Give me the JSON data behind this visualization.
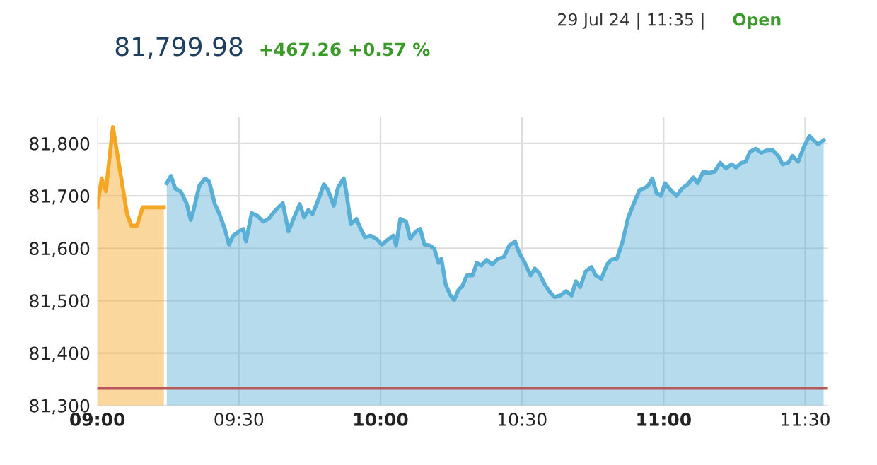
{
  "chart_data": {
    "type": "area",
    "annotations": [
      "81,799.98",
      "+467.26 +0.57 %",
      "29 Jul 24 | 11:35 |",
      "Open"
    ],
    "xlim": [
      9.0,
      11.58
    ],
    "ylim": [
      81300,
      81850
    ],
    "xticks": [
      {
        "value": 9.0,
        "label": "09:00"
      },
      {
        "value": 9.5,
        "label": "09:30"
      },
      {
        "value": 10.0,
        "label": "10:00"
      },
      {
        "value": 10.5,
        "label": "10:30"
      },
      {
        "value": 11.0,
        "label": "11:00"
      },
      {
        "value": 11.5,
        "label": "11:30"
      }
    ],
    "yticks": [
      {
        "value": 81300,
        "label": "81,300"
      },
      {
        "value": 81400,
        "label": "81,400"
      },
      {
        "value": 81500,
        "label": "81,500"
      },
      {
        "value": 81600,
        "label": "81,600"
      },
      {
        "value": 81700,
        "label": "81,700"
      },
      {
        "value": 81800,
        "label": "81,800"
      }
    ],
    "grid": true,
    "legend": false,
    "ref_lines": [
      {
        "axis": "y",
        "value": 81333,
        "color": "#b5595a"
      }
    ],
    "series": [
      {
        "color": "#f5a623",
        "x": [
          9.0,
          9.015,
          9.03,
          9.055,
          9.105,
          9.12,
          9.14,
          9.16,
          9.235
        ],
        "values": [
          81678,
          81733,
          81709,
          81831,
          81665,
          81643,
          81643,
          81678,
          81678
        ]
      },
      {
        "color": "#5aafd6",
        "x": [
          9.245,
          9.26,
          9.275,
          9.295,
          9.315,
          9.33,
          9.34,
          9.36,
          9.38,
          9.395,
          9.415,
          9.43,
          9.45,
          9.465,
          9.48,
          9.5,
          9.515,
          9.525,
          9.545,
          9.565,
          9.585,
          9.605,
          9.625,
          9.645,
          9.655,
          9.675,
          9.695,
          9.715,
          9.73,
          9.745,
          9.76,
          9.78,
          9.8,
          9.815,
          9.835,
          9.85,
          9.87,
          9.88,
          9.895,
          9.915,
          9.93,
          9.945,
          9.965,
          9.985,
          10.005,
          10.025,
          10.045,
          10.055,
          10.07,
          10.09,
          10.105,
          10.125,
          10.14,
          10.155,
          10.175,
          10.19,
          10.205,
          10.215,
          10.23,
          10.245,
          10.26,
          10.275,
          10.29,
          10.305,
          10.325,
          10.34,
          10.355,
          10.375,
          10.395,
          10.415,
          10.435,
          10.455,
          10.475,
          10.49,
          10.51,
          10.53,
          10.545,
          10.56,
          10.58,
          10.6,
          10.615,
          10.635,
          10.655,
          10.675,
          10.69,
          10.705,
          10.725,
          10.745,
          10.76,
          10.78,
          10.8,
          10.815,
          10.835,
          10.855,
          10.875,
          10.895,
          10.915,
          10.93,
          10.945,
          10.96,
          10.975,
          10.99,
          11.005,
          11.025,
          11.045,
          11.065,
          11.085,
          11.105,
          11.12,
          11.14,
          11.16,
          11.18,
          11.2,
          11.22,
          11.24,
          11.255,
          11.275,
          11.29,
          11.305,
          11.325,
          11.345,
          11.365,
          11.385,
          11.405,
          11.42,
          11.44,
          11.455,
          11.475,
          11.495,
          11.515,
          11.53,
          11.545,
          11.565
        ],
        "values": [
          81724,
          81738,
          81714,
          81708,
          81686,
          81654,
          81673,
          81719,
          81733,
          81727,
          81684,
          81667,
          81637,
          81607,
          81624,
          81632,
          81637,
          81613,
          81667,
          81662,
          81651,
          81656,
          81670,
          81681,
          81686,
          81632,
          81659,
          81684,
          81659,
          81673,
          81665,
          81692,
          81722,
          81711,
          81681,
          81716,
          81733,
          81705,
          81646,
          81656,
          81637,
          81621,
          81624,
          81618,
          81607,
          81616,
          81624,
          81605,
          81656,
          81651,
          81618,
          81632,
          81637,
          81607,
          81605,
          81599,
          81572,
          81580,
          81531,
          81512,
          81501,
          81520,
          81529,
          81548,
          81548,
          81572,
          81567,
          81578,
          81569,
          81580,
          81583,
          81605,
          81613,
          81591,
          81572,
          81548,
          81561,
          81553,
          81531,
          81515,
          81507,
          81510,
          81518,
          81510,
          81537,
          81526,
          81556,
          81564,
          81548,
          81542,
          81569,
          81578,
          81580,
          81613,
          81659,
          81686,
          81711,
          81714,
          81719,
          81733,
          81705,
          81700,
          81724,
          81711,
          81700,
          81714,
          81722,
          81735,
          81724,
          81746,
          81744,
          81746,
          81763,
          81752,
          81760,
          81754,
          81763,
          81765,
          81784,
          81790,
          81782,
          81787,
          81787,
          81776,
          81760,
          81763,
          81776,
          81765,
          81793,
          81814,
          81806,
          81798,
          81806
        ]
      }
    ]
  }
}
